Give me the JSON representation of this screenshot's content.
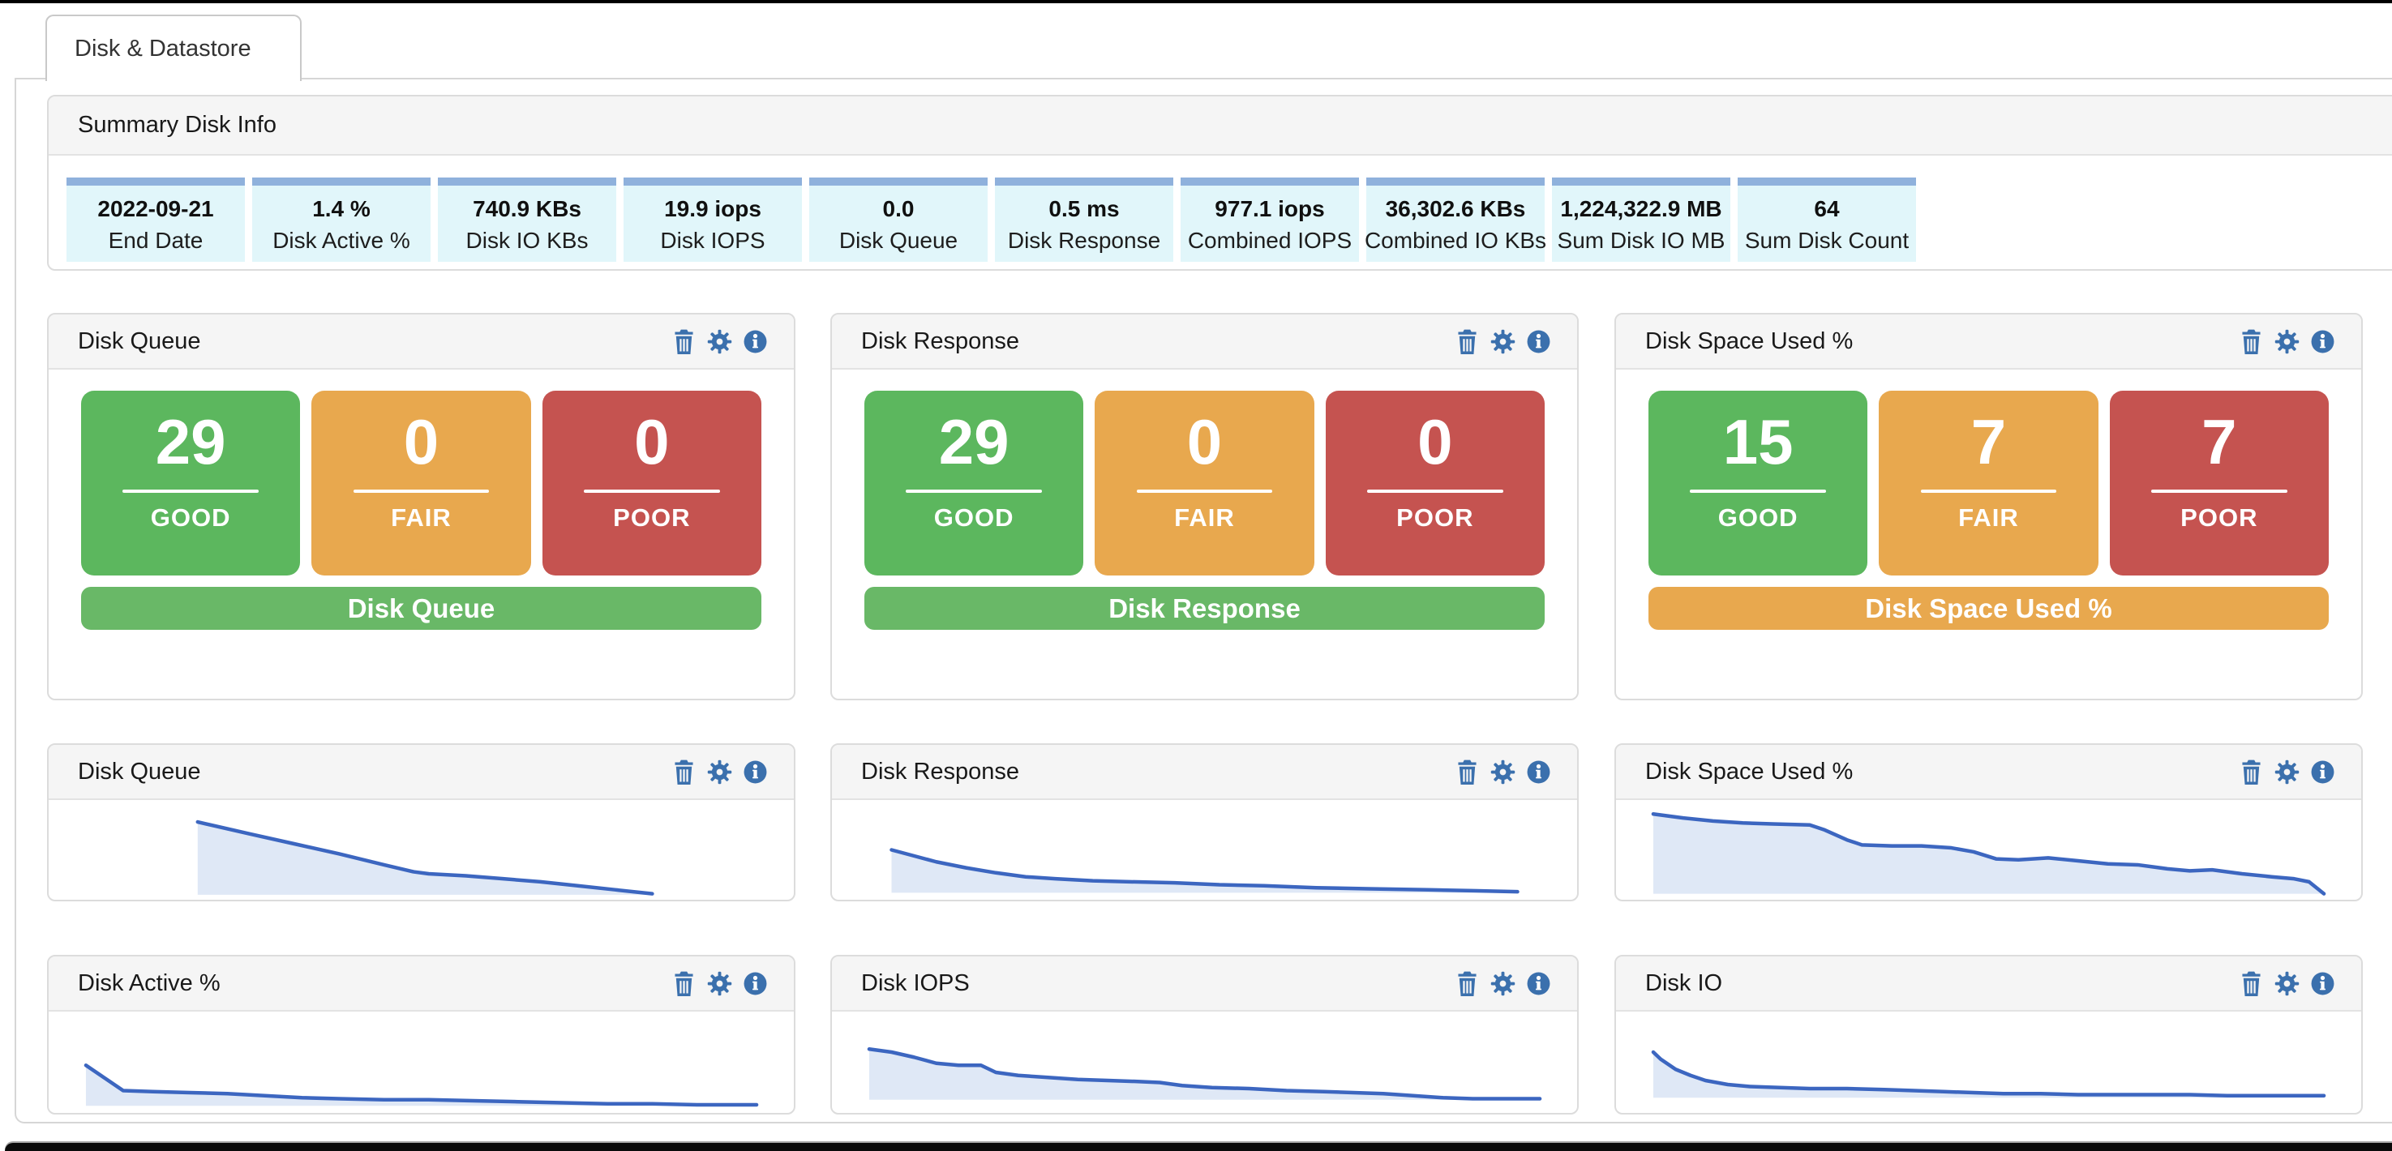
{
  "tab": {
    "label": "Disk & Datastore"
  },
  "summary": {
    "title": "Summary Disk Info",
    "tiles": [
      {
        "value": "2022-09-21",
        "label": "End Date"
      },
      {
        "value": "1.4 %",
        "label": "Disk Active %"
      },
      {
        "value": "740.9 KBs",
        "label": "Disk IO KBs"
      },
      {
        "value": "19.9 iops",
        "label": "Disk IOPS"
      },
      {
        "value": "0.0",
        "label": "Disk Queue"
      },
      {
        "value": "0.5 ms",
        "label": "Disk Response"
      },
      {
        "value": "977.1 iops",
        "label": "Combined IOPS"
      },
      {
        "value": "36,302.6 KBs",
        "label": "Combined IO KBs"
      },
      {
        "value": "1,224,322.9 MB",
        "label": "Sum Disk IO MB"
      },
      {
        "value": "64",
        "label": "Sum Disk Count"
      }
    ]
  },
  "widget_icons": [
    {
      "name": "trash-icon",
      "action": "remove widget"
    },
    {
      "name": "gear-icon",
      "action": "widget settings"
    },
    {
      "name": "info-icon",
      "action": "widget info"
    }
  ],
  "status_widgets": [
    {
      "title": "Disk Queue",
      "tiles": [
        {
          "label": "GOOD",
          "value": "29",
          "color": "#5cb75e"
        },
        {
          "label": "FAIR",
          "value": "0",
          "color": "#e8a84e"
        },
        {
          "label": "POOR",
          "value": "0",
          "color": "#c55350"
        }
      ],
      "footer": {
        "label": "Disk Queue",
        "color": "#69b867"
      }
    },
    {
      "title": "Disk Response",
      "tiles": [
        {
          "label": "GOOD",
          "value": "29",
          "color": "#5cb75e"
        },
        {
          "label": "FAIR",
          "value": "0",
          "color": "#e8a84e"
        },
        {
          "label": "POOR",
          "value": "0",
          "color": "#c55350"
        }
      ],
      "footer": {
        "label": "Disk Response",
        "color": "#69b867"
      }
    },
    {
      "title": "Disk Space Used %",
      "tiles": [
        {
          "label": "GOOD",
          "value": "15",
          "color": "#5cb75e"
        },
        {
          "label": "FAIR",
          "value": "7",
          "color": "#e8a84e"
        },
        {
          "label": "POOR",
          "value": "7",
          "color": "#c55350"
        }
      ],
      "footer": {
        "label": "Disk Space Used %",
        "color": "#e8a84e"
      }
    }
  ],
  "spark_widgets": [
    {
      "title": "Disk Queue",
      "chart_index": 3
    },
    {
      "title": "Disk Response",
      "chart_index": 4
    },
    {
      "title": "Disk Space Used %",
      "chart_index": 5
    },
    {
      "title": "Disk Active %",
      "chart_index": 6
    },
    {
      "title": "Disk IOPS",
      "chart_index": 7
    },
    {
      "title": "Disk IO",
      "chart_index": 8
    }
  ],
  "colors": {
    "icon_blue": "#3b70ad",
    "spark_line": "#3c66c0",
    "spark_fill": "#dfe8f6",
    "tile_strip": "#8fb1dc",
    "tile_body": "#e1f6fa",
    "panel_header_bg": "#f5f5f5",
    "good": "#5cb75e",
    "fair": "#e8a84e",
    "poor": "#c55350"
  },
  "chart_data": [
    {
      "type": "table",
      "title": "Disk Queue status counts",
      "categories": [
        "GOOD",
        "FAIR",
        "POOR"
      ],
      "values": [
        29,
        0,
        0
      ]
    },
    {
      "type": "table",
      "title": "Disk Response status counts",
      "categories": [
        "GOOD",
        "FAIR",
        "POOR"
      ],
      "values": [
        29,
        0,
        0
      ]
    },
    {
      "type": "table",
      "title": "Disk Space Used % status counts",
      "categories": [
        "GOOD",
        "FAIR",
        "POOR"
      ],
      "values": [
        15,
        7,
        7
      ]
    },
    {
      "type": "area",
      "title": "Disk Queue",
      "axes": false,
      "legend": false,
      "note": "unlabeled sparkline; points are [x%,y%] of plot box, y measured from top",
      "baseline_pct": 95,
      "points_pct": [
        [
          20,
          22
        ],
        [
          27,
          34
        ],
        [
          33,
          44
        ],
        [
          39,
          54
        ],
        [
          45,
          65
        ],
        [
          49,
          72
        ],
        [
          51,
          74
        ],
        [
          56,
          76
        ],
        [
          61,
          79
        ],
        [
          66,
          82
        ],
        [
          71,
          86
        ],
        [
          76,
          90
        ],
        [
          81,
          94
        ]
      ]
    },
    {
      "type": "area",
      "title": "Disk Response",
      "axes": false,
      "legend": false,
      "baseline_pct": 93,
      "points_pct": [
        [
          8,
          50
        ],
        [
          11,
          56
        ],
        [
          14,
          62
        ],
        [
          18,
          68
        ],
        [
          22,
          73
        ],
        [
          26,
          77
        ],
        [
          30,
          79
        ],
        [
          35,
          81
        ],
        [
          40,
          82
        ],
        [
          46,
          83
        ],
        [
          52,
          85
        ],
        [
          58,
          86
        ],
        [
          65,
          88
        ],
        [
          72,
          89
        ],
        [
          80,
          90
        ],
        [
          86,
          91
        ],
        [
          92,
          92
        ]
      ]
    },
    {
      "type": "area",
      "title": "Disk Space Used %",
      "axes": false,
      "legend": false,
      "baseline_pct": 94,
      "points_pct": [
        [
          5,
          14
        ],
        [
          9,
          18
        ],
        [
          13,
          21
        ],
        [
          17,
          23
        ],
        [
          21,
          24
        ],
        [
          26,
          25
        ],
        [
          28,
          30
        ],
        [
          31,
          40
        ],
        [
          33,
          45
        ],
        [
          37,
          46
        ],
        [
          41,
          46
        ],
        [
          45,
          48
        ],
        [
          48,
          52
        ],
        [
          51,
          59
        ],
        [
          54,
          60
        ],
        [
          58,
          58
        ],
        [
          62,
          61
        ],
        [
          66,
          64
        ],
        [
          70,
          65
        ],
        [
          74,
          69
        ],
        [
          77,
          71
        ],
        [
          80,
          70
        ],
        [
          84,
          74
        ],
        [
          88,
          77
        ],
        [
          91,
          79
        ],
        [
          93,
          82
        ],
        [
          95,
          94
        ]
      ]
    },
    {
      "type": "area",
      "title": "Disk Active %",
      "axes": false,
      "legend": false,
      "baseline_pct": 93,
      "points_pct": [
        [
          5,
          53
        ],
        [
          6,
          58
        ],
        [
          8,
          68
        ],
        [
          10,
          78
        ],
        [
          14,
          79
        ],
        [
          19,
          80
        ],
        [
          24,
          81
        ],
        [
          29,
          83
        ],
        [
          34,
          85
        ],
        [
          39,
          86
        ],
        [
          45,
          87
        ],
        [
          51,
          87
        ],
        [
          57,
          88
        ],
        [
          63,
          89
        ],
        [
          69,
          90
        ],
        [
          75,
          91
        ],
        [
          81,
          91
        ],
        [
          87,
          92
        ],
        [
          92,
          92
        ],
        [
          95,
          92
        ]
      ]
    },
    {
      "type": "area",
      "title": "Disk IOPS",
      "axes": false,
      "legend": false,
      "baseline_pct": 87,
      "points_pct": [
        [
          5,
          37
        ],
        [
          8,
          40
        ],
        [
          11,
          45
        ],
        [
          14,
          51
        ],
        [
          17,
          53
        ],
        [
          20,
          53
        ],
        [
          22,
          60
        ],
        [
          25,
          63
        ],
        [
          29,
          65
        ],
        [
          33,
          67
        ],
        [
          37,
          68
        ],
        [
          41,
          69
        ],
        [
          44,
          70
        ],
        [
          47,
          73
        ],
        [
          51,
          75
        ],
        [
          56,
          76
        ],
        [
          61,
          78
        ],
        [
          66,
          79
        ],
        [
          70,
          80
        ],
        [
          74,
          81
        ],
        [
          78,
          83
        ],
        [
          82,
          85
        ],
        [
          86,
          86
        ],
        [
          90,
          86
        ],
        [
          95,
          86
        ]
      ]
    },
    {
      "type": "area",
      "title": "Disk IO",
      "axes": false,
      "legend": false,
      "baseline_pct": 85,
      "points_pct": [
        [
          5,
          40
        ],
        [
          6,
          47
        ],
        [
          8,
          57
        ],
        [
          10,
          63
        ],
        [
          12,
          68
        ],
        [
          15,
          72
        ],
        [
          18,
          74
        ],
        [
          22,
          75
        ],
        [
          26,
          76
        ],
        [
          31,
          76
        ],
        [
          36,
          77
        ],
        [
          40,
          78
        ],
        [
          44,
          79
        ],
        [
          48,
          80
        ],
        [
          52,
          81
        ],
        [
          57,
          81
        ],
        [
          62,
          82
        ],
        [
          67,
          82
        ],
        [
          72,
          82
        ],
        [
          77,
          82
        ],
        [
          82,
          83
        ],
        [
          87,
          83
        ],
        [
          91,
          83
        ],
        [
          95,
          83
        ]
      ]
    }
  ]
}
